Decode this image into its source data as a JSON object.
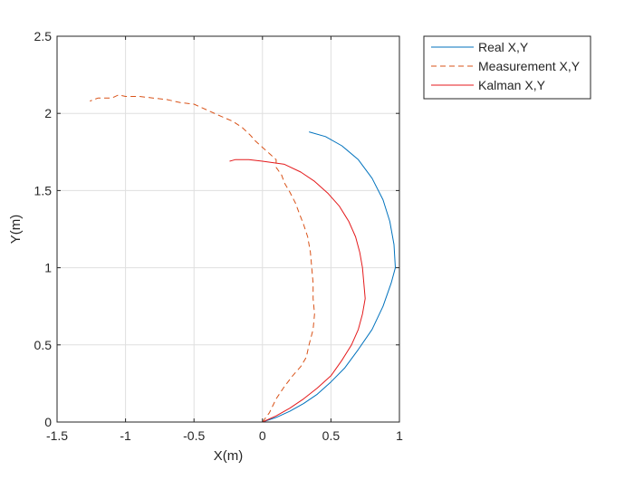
{
  "chart_data": {
    "type": "line",
    "title": "",
    "xlabel": "X(m)",
    "ylabel": "Y(m)",
    "xlim": [
      -1.5,
      1
    ],
    "ylim": [
      0,
      2.5
    ],
    "xticks": [
      -1.5,
      -1,
      -0.5,
      0,
      0.5,
      1
    ],
    "yticks": [
      0,
      0.5,
      1,
      1.5,
      2,
      2.5
    ],
    "xtick_labels": [
      "-1.5",
      "-1",
      "-0.5",
      "0",
      "0.5",
      "1"
    ],
    "ytick_labels": [
      "0",
      "0.5",
      "1",
      "1.5",
      "2",
      "2.5"
    ],
    "grid": true,
    "legend_position": "outside top-right",
    "series": [
      {
        "name": "Real X,Y",
        "color": "#0072BD",
        "dash": "solid",
        "points": [
          [
            0.0,
            0.0
          ],
          [
            0.1,
            0.03
          ],
          [
            0.2,
            0.07
          ],
          [
            0.3,
            0.12
          ],
          [
            0.4,
            0.18
          ],
          [
            0.5,
            0.26
          ],
          [
            0.6,
            0.35
          ],
          [
            0.7,
            0.47
          ],
          [
            0.8,
            0.6
          ],
          [
            0.88,
            0.75
          ],
          [
            0.94,
            0.9
          ],
          [
            0.97,
            1.0
          ],
          [
            0.96,
            1.15
          ],
          [
            0.93,
            1.3
          ],
          [
            0.88,
            1.44
          ],
          [
            0.8,
            1.58
          ],
          [
            0.7,
            1.7
          ],
          [
            0.58,
            1.79
          ],
          [
            0.46,
            1.85
          ],
          [
            0.34,
            1.88
          ]
        ]
      },
      {
        "name": "Measurement X,Y",
        "color": "#D95319",
        "dash": "dashed",
        "points": [
          [
            0.0,
            0.0
          ],
          [
            0.05,
            0.06
          ],
          [
            0.1,
            0.15
          ],
          [
            0.16,
            0.23
          ],
          [
            0.22,
            0.3
          ],
          [
            0.28,
            0.36
          ],
          [
            0.32,
            0.42
          ],
          [
            0.34,
            0.5
          ],
          [
            0.37,
            0.6
          ],
          [
            0.38,
            0.7
          ],
          [
            0.37,
            0.8
          ],
          [
            0.37,
            0.9
          ],
          [
            0.36,
            1.0
          ],
          [
            0.35,
            1.1
          ],
          [
            0.33,
            1.2
          ],
          [
            0.3,
            1.28
          ],
          [
            0.27,
            1.35
          ],
          [
            0.24,
            1.42
          ],
          [
            0.2,
            1.49
          ],
          [
            0.16,
            1.55
          ],
          [
            0.14,
            1.6
          ],
          [
            0.1,
            1.65
          ],
          [
            0.1,
            1.7
          ],
          [
            0.05,
            1.74
          ],
          [
            0.0,
            1.78
          ],
          [
            -0.05,
            1.82
          ],
          [
            -0.09,
            1.86
          ],
          [
            -0.15,
            1.91
          ],
          [
            -0.22,
            1.95
          ],
          [
            -0.3,
            1.98
          ],
          [
            -0.4,
            2.02
          ],
          [
            -0.5,
            2.06
          ],
          [
            -0.6,
            2.07
          ],
          [
            -0.7,
            2.09
          ],
          [
            -0.8,
            2.1
          ],
          [
            -0.9,
            2.11
          ],
          [
            -1.0,
            2.11
          ],
          [
            -1.05,
            2.12
          ],
          [
            -1.1,
            2.1
          ],
          [
            -1.2,
            2.1
          ],
          [
            -1.26,
            2.08
          ]
        ]
      },
      {
        "name": "Kalman X,Y",
        "color": "#E41A1C",
        "dash": "solid",
        "points": [
          [
            0.0,
            0.0
          ],
          [
            0.1,
            0.04
          ],
          [
            0.2,
            0.09
          ],
          [
            0.3,
            0.15
          ],
          [
            0.4,
            0.22
          ],
          [
            0.5,
            0.3
          ],
          [
            0.58,
            0.4
          ],
          [
            0.65,
            0.5
          ],
          [
            0.7,
            0.6
          ],
          [
            0.73,
            0.7
          ],
          [
            0.75,
            0.8
          ],
          [
            0.74,
            0.9
          ],
          [
            0.73,
            1.0
          ],
          [
            0.71,
            1.1
          ],
          [
            0.68,
            1.2
          ],
          [
            0.63,
            1.3
          ],
          [
            0.56,
            1.4
          ],
          [
            0.48,
            1.48
          ],
          [
            0.38,
            1.56
          ],
          [
            0.28,
            1.62
          ],
          [
            0.16,
            1.67
          ],
          [
            0.0,
            1.69
          ],
          [
            -0.1,
            1.7
          ],
          [
            -0.2,
            1.7
          ],
          [
            -0.24,
            1.69
          ]
        ]
      }
    ]
  }
}
